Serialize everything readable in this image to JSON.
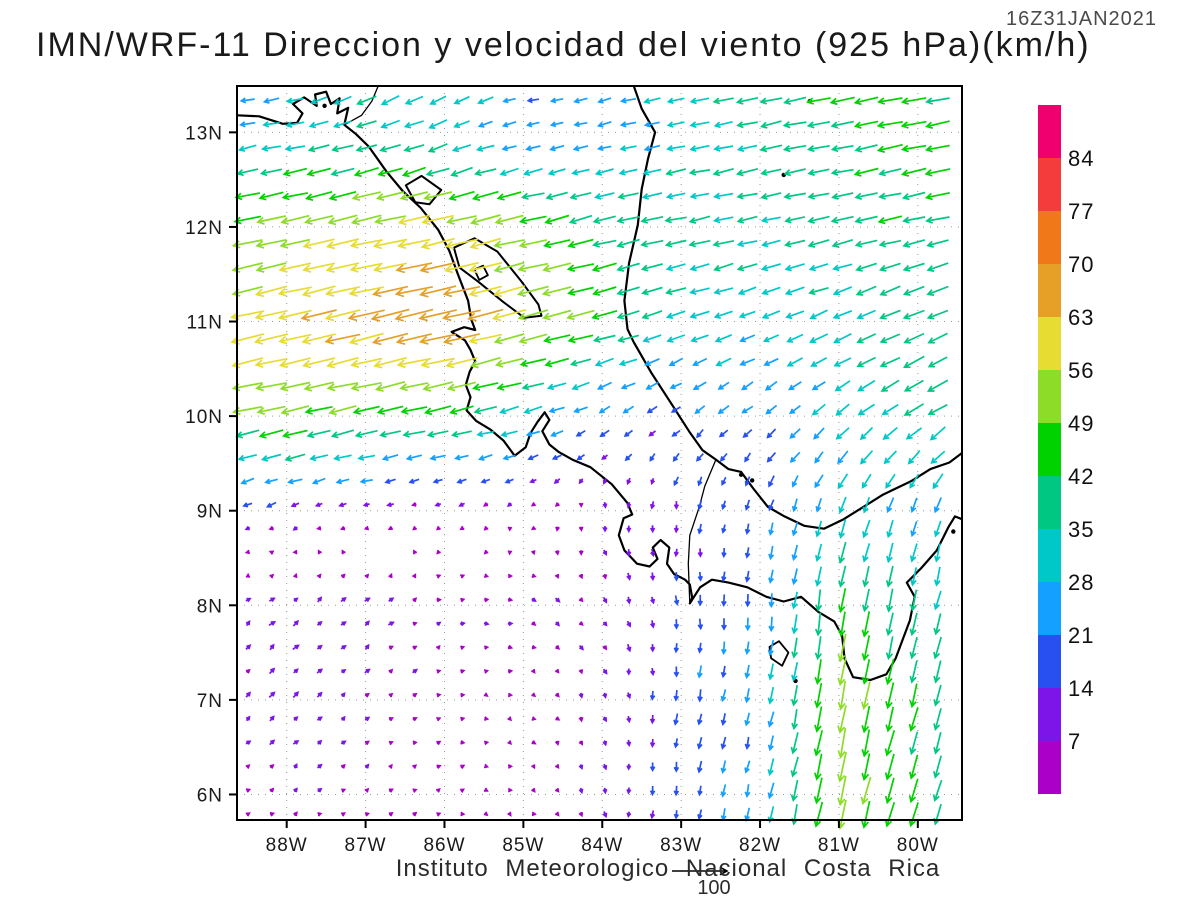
{
  "chart_data": {
    "type": "vector_field",
    "title": "IMN/WRF-11 Direccion y velocidad del viento (925 hPa)(km/h)",
    "valid_time": "16Z31JAN2021",
    "source": "Instituto Meteorologico Nacional Costa Rica",
    "units": "km/h",
    "level": "925 hPa",
    "model": "IMN/WRF-11",
    "projection": {
      "lon_west": 88.63,
      "lon_east": 79.44,
      "lat_north": 13.49,
      "lat_south": 5.73
    },
    "x_ticks": [
      {
        "deg": 88,
        "label": "88W"
      },
      {
        "deg": 87,
        "label": "87W"
      },
      {
        "deg": 86,
        "label": "86W"
      },
      {
        "deg": 85,
        "label": "85W"
      },
      {
        "deg": 84,
        "label": "84W"
      },
      {
        "deg": 83,
        "label": "83W"
      },
      {
        "deg": 82,
        "label": "82W"
      },
      {
        "deg": 81,
        "label": "81W"
      },
      {
        "deg": 80,
        "label": "80W"
      }
    ],
    "y_ticks": [
      {
        "deg": 13,
        "label": "13N"
      },
      {
        "deg": 12,
        "label": "12N"
      },
      {
        "deg": 11,
        "label": "11N"
      },
      {
        "deg": 10,
        "label": "10N"
      },
      {
        "deg": 9,
        "label": "9N"
      },
      {
        "deg": 8,
        "label": "8N"
      },
      {
        "deg": 7,
        "label": "7N"
      },
      {
        "deg": 6,
        "label": "6N"
      }
    ],
    "colorbar": {
      "levels": [
        7,
        14,
        21,
        28,
        35,
        42,
        49,
        56,
        63,
        70,
        77,
        84
      ],
      "colors": [
        "#aa00c8",
        "#7d14e8",
        "#2850f0",
        "#14a0ff",
        "#00c8c8",
        "#00c882",
        "#00d200",
        "#8cdc28",
        "#e6dc32",
        "#e6a028",
        "#f07818",
        "#f53c3c",
        "#f0006e"
      ]
    },
    "reference_arrow": {
      "value": 100,
      "label": "100"
    },
    "wind_grid": {
      "lonsW": [
        89,
        88,
        87,
        86,
        85,
        84,
        83,
        82,
        81,
        80,
        79
      ],
      "lats": [
        14,
        13,
        12,
        11,
        10,
        9,
        8,
        7,
        6,
        5
      ],
      "u": [
        [
          -12,
          -22,
          -30,
          -28,
          -22,
          -26,
          -32,
          -38,
          -42,
          -44,
          -42
        ],
        [
          -26,
          -30,
          -33,
          -30,
          -19,
          -21,
          -30,
          -36,
          -40,
          -44,
          -42
        ],
        [
          -48,
          -52,
          -55,
          -58,
          -50,
          -40,
          -36,
          -34,
          -36,
          -40,
          -40
        ],
        [
          -55,
          -60,
          -64,
          -70,
          -56,
          -44,
          -32,
          -28,
          -32,
          -36,
          -36
        ],
        [
          -48,
          -50,
          -47,
          -42,
          -30,
          -17,
          -14,
          -17,
          -22,
          -32,
          -32
        ],
        [
          -13,
          -11,
          -7,
          -5,
          -4,
          1,
          -1,
          -4,
          -10,
          -9,
          -9
        ],
        [
          6,
          9,
          8,
          6,
          6,
          5,
          1,
          -2,
          -7,
          -8,
          -7
        ],
        [
          5,
          8,
          6,
          4,
          4,
          3,
          -2,
          -5,
          -9,
          -11,
          -9
        ],
        [
          4,
          5,
          4,
          4,
          3,
          2,
          -3,
          -5,
          -12,
          -13,
          -10
        ],
        [
          4,
          5,
          4,
          3,
          3,
          2,
          -3,
          -5,
          -11,
          -13,
          -10
        ]
      ],
      "v": [
        [
          -3,
          -4,
          -22,
          -18,
          -5,
          -6,
          -7,
          -8,
          -9,
          -9,
          -9
        ],
        [
          -5,
          -6,
          -10,
          -12,
          -5,
          -5,
          -7,
          -8,
          -8,
          -9,
          -9
        ],
        [
          -10,
          -11,
          -12,
          -14,
          -12,
          -10,
          -8,
          -8,
          -8,
          -9,
          -9
        ],
        [
          -13,
          -14,
          -15,
          -17,
          -14,
          -12,
          -10,
          -11,
          -14,
          -16,
          -16
        ],
        [
          -10,
          -11,
          -10,
          -10,
          -8,
          -9,
          -11,
          -13,
          -18,
          -20,
          -18
        ],
        [
          -6,
          -5,
          -3,
          -2,
          -3,
          -7,
          -13,
          -17,
          -28,
          -26,
          -28
        ],
        [
          4,
          7,
          7,
          2,
          -2,
          -7,
          -16,
          -20,
          -45,
          -36,
          -30
        ],
        [
          5,
          8,
          5,
          2,
          -2,
          -7,
          -18,
          -24,
          -50,
          -42,
          -30
        ],
        [
          3,
          4,
          3,
          2,
          -2,
          -8,
          -16,
          -22,
          -54,
          -40,
          -27
        ],
        [
          3,
          4,
          3,
          2,
          -2,
          -8,
          -16,
          -22,
          -46,
          -38,
          -26
        ]
      ]
    },
    "map": {
      "features": [
        {
          "name": "pacific-coast",
          "type": "line",
          "width": 2.2,
          "points": [
            [
              88.63,
              13.18
            ],
            [
              88.35,
              13.17
            ],
            [
              88.05,
              13.09
            ],
            [
              87.87,
              13.1
            ],
            [
              87.8,
              13.2
            ],
            [
              87.92,
              13.3
            ],
            [
              87.78,
              13.37
            ],
            [
              87.62,
              13.28
            ],
            [
              87.64,
              13.4
            ],
            [
              87.5,
              13.43
            ],
            [
              87.44,
              13.3
            ],
            [
              87.33,
              13.36
            ],
            [
              87.36,
              13.2
            ],
            [
              87.22,
              13.26
            ],
            [
              87.27,
              13.08
            ],
            [
              87.12,
              12.98
            ],
            [
              86.96,
              12.85
            ],
            [
              86.73,
              12.58
            ],
            [
              86.53,
              12.38
            ],
            [
              86.3,
              12.2
            ],
            [
              86.08,
              11.97
            ],
            [
              85.94,
              11.75
            ],
            [
              85.83,
              11.5
            ],
            [
              85.7,
              11.22
            ],
            [
              85.66,
              11.02
            ],
            [
              85.61,
              10.91
            ],
            [
              85.75,
              10.94
            ],
            [
              85.91,
              10.89
            ],
            [
              85.74,
              10.8
            ],
            [
              85.67,
              10.7
            ],
            [
              85.61,
              10.58
            ],
            [
              85.68,
              10.47
            ],
            [
              85.73,
              10.33
            ],
            [
              85.67,
              10.2
            ],
            [
              85.72,
              10.06
            ],
            [
              85.6,
              9.95
            ],
            [
              85.42,
              9.86
            ],
            [
              85.25,
              9.74
            ],
            [
              85.11,
              9.58
            ],
            [
              84.97,
              9.67
            ],
            [
              84.91,
              9.82
            ],
            [
              84.82,
              9.94
            ],
            [
              84.73,
              10.04
            ],
            [
              84.67,
              9.96
            ],
            [
              84.76,
              9.84
            ],
            [
              84.67,
              9.7
            ],
            [
              84.55,
              9.62
            ],
            [
              84.38,
              9.54
            ],
            [
              84.15,
              9.46
            ],
            [
              83.88,
              9.28
            ],
            [
              83.68,
              9.08
            ],
            [
              83.62,
              8.96
            ],
            [
              83.73,
              8.92
            ],
            [
              83.79,
              8.74
            ],
            [
              83.72,
              8.58
            ],
            [
              83.56,
              8.44
            ],
            [
              83.4,
              8.41
            ],
            [
              83.3,
              8.49
            ],
            [
              83.36,
              8.61
            ],
            [
              83.26,
              8.69
            ],
            [
              83.15,
              8.61
            ],
            [
              83.18,
              8.44
            ],
            [
              83.09,
              8.33
            ],
            [
              82.95,
              8.27
            ],
            [
              82.89,
              8.22
            ],
            [
              82.86,
              8.08
            ],
            [
              82.89,
              8.02
            ],
            [
              82.76,
              8.19
            ],
            [
              82.61,
              8.27
            ],
            [
              82.4,
              8.24
            ],
            [
              82.16,
              8.19
            ],
            [
              81.92,
              8.09
            ],
            [
              81.7,
              8.04
            ],
            [
              81.48,
              8.09
            ],
            [
              81.26,
              7.93
            ],
            [
              81.06,
              7.83
            ],
            [
              80.96,
              7.68
            ],
            [
              80.93,
              7.44
            ],
            [
              80.82,
              7.24
            ],
            [
              80.6,
              7.21
            ],
            [
              80.4,
              7.27
            ],
            [
              80.28,
              7.44
            ],
            [
              80.19,
              7.64
            ],
            [
              80.1,
              7.84
            ],
            [
              80.04,
              8.09
            ],
            [
              80.14,
              8.24
            ],
            [
              79.96,
              8.39
            ],
            [
              79.76,
              8.58
            ],
            [
              79.61,
              8.83
            ],
            [
              79.53,
              8.94
            ],
            [
              79.44,
              8.91
            ]
          ]
        },
        {
          "name": "caribbean-coast",
          "type": "line",
          "width": 2.2,
          "points": [
            [
              83.6,
              13.49
            ],
            [
              83.5,
              13.25
            ],
            [
              83.33,
              13.0
            ],
            [
              83.42,
              12.72
            ],
            [
              83.5,
              12.4
            ],
            [
              83.55,
              12.02
            ],
            [
              83.66,
              11.62
            ],
            [
              83.72,
              11.22
            ],
            [
              83.68,
              10.92
            ],
            [
              83.6,
              10.78
            ],
            [
              83.38,
              10.46
            ],
            [
              83.1,
              10.1
            ],
            [
              82.9,
              9.84
            ],
            [
              82.73,
              9.64
            ],
            [
              82.56,
              9.54
            ],
            [
              82.4,
              9.44
            ],
            [
              82.24,
              9.41
            ],
            [
              82.09,
              9.24
            ],
            [
              81.9,
              9.04
            ],
            [
              81.69,
              8.94
            ],
            [
              81.44,
              8.84
            ],
            [
              81.19,
              8.81
            ],
            [
              80.94,
              8.91
            ],
            [
              80.69,
              9.04
            ],
            [
              80.44,
              9.17
            ],
            [
              80.09,
              9.31
            ],
            [
              79.84,
              9.44
            ],
            [
              79.6,
              9.51
            ],
            [
              79.44,
              9.61
            ]
          ]
        },
        {
          "name": "border-cr-panama",
          "type": "line",
          "width": 1.3,
          "points": [
            [
              82.56,
              9.54
            ],
            [
              82.7,
              9.26
            ],
            [
              82.77,
              9.04
            ],
            [
              82.89,
              8.74
            ],
            [
              82.91,
              8.44
            ],
            [
              82.89,
              8.02
            ]
          ]
        },
        {
          "name": "border-nicaragua-honduras",
          "type": "line",
          "width": 1.3,
          "points": [
            [
              87.27,
              13.08
            ],
            [
              87.05,
              13.18
            ],
            [
              86.92,
              13.33
            ],
            [
              86.84,
              13.49
            ]
          ]
        },
        {
          "name": "lake-nicaragua",
          "type": "closed",
          "width": 2.0,
          "points": [
            [
              85.88,
              11.78
            ],
            [
              85.62,
              11.88
            ],
            [
              85.33,
              11.74
            ],
            [
              85.03,
              11.43
            ],
            [
              84.81,
              11.18
            ],
            [
              84.77,
              11.06
            ],
            [
              84.99,
              11.04
            ],
            [
              85.26,
              11.21
            ],
            [
              85.57,
              11.42
            ],
            [
              85.81,
              11.57
            ]
          ]
        },
        {
          "name": "lake-managua",
          "type": "closed",
          "width": 2.0,
          "points": [
            [
              86.49,
              12.44
            ],
            [
              86.29,
              12.54
            ],
            [
              86.04,
              12.39
            ],
            [
              86.19,
              12.24
            ],
            [
              86.37,
              12.26
            ]
          ]
        },
        {
          "name": "island-ometepe",
          "type": "closed",
          "width": 1.8,
          "points": [
            [
              85.62,
              11.55
            ],
            [
              85.51,
              11.59
            ],
            [
              85.45,
              11.49
            ],
            [
              85.56,
              11.44
            ]
          ]
        },
        {
          "name": "island-coiba",
          "type": "closed",
          "width": 1.8,
          "points": [
            [
              81.88,
              7.56
            ],
            [
              81.76,
              7.62
            ],
            [
              81.64,
              7.5
            ],
            [
              81.72,
              7.36
            ],
            [
              81.86,
              7.44
            ]
          ]
        }
      ],
      "islets": [
        [
          81.7,
          12.55
        ],
        [
          81.37,
          13.33
        ],
        [
          82.24,
          9.38
        ],
        [
          82.1,
          9.32
        ],
        [
          87.52,
          13.28
        ],
        [
          81.55,
          7.2
        ],
        [
          79.55,
          8.78
        ]
      ]
    },
    "style": {
      "frame_color": "#000000",
      "grid_color": "#999999",
      "coast_color": "#000000",
      "text_color": "#1a1a1a"
    }
  }
}
